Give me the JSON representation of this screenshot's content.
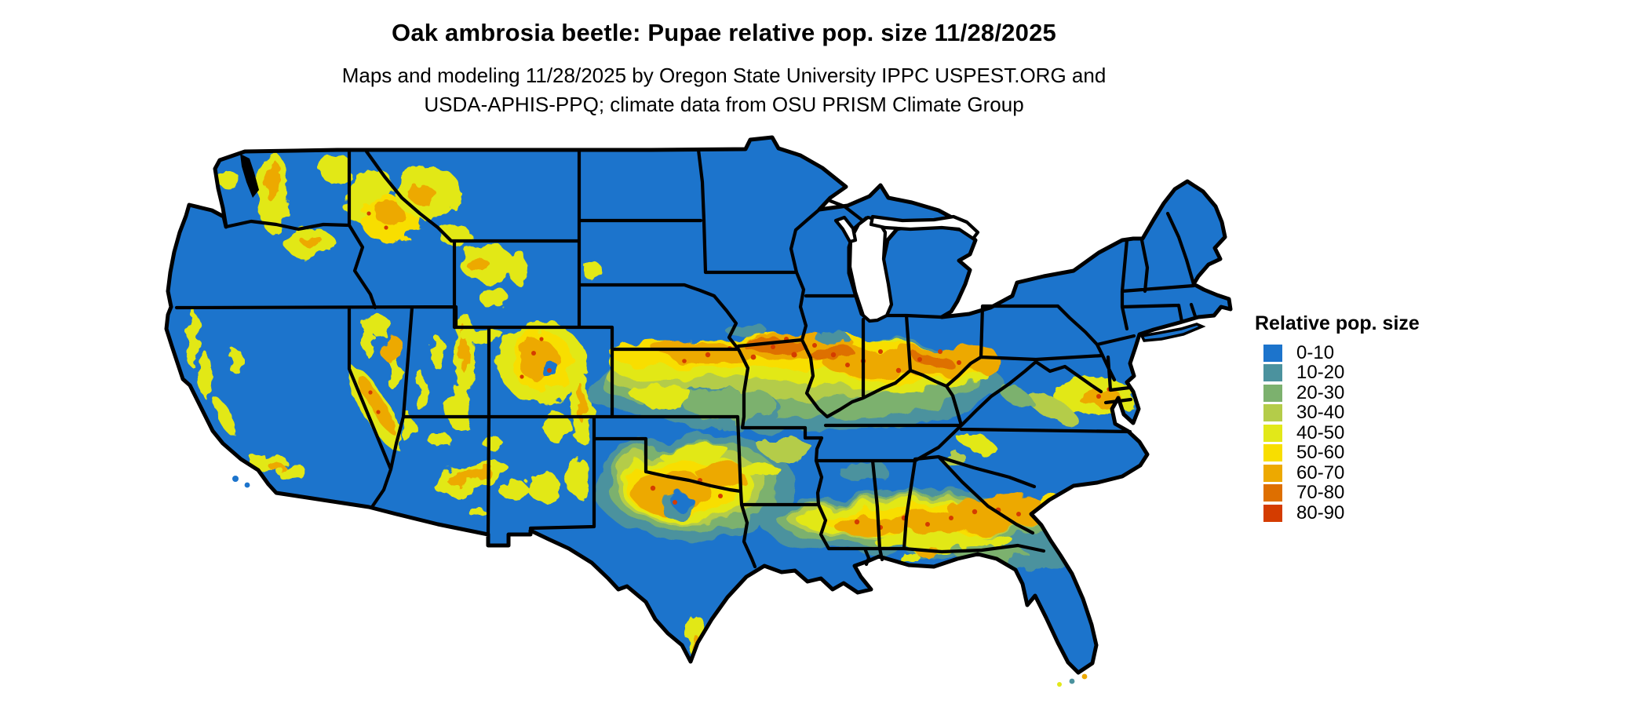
{
  "header": {
    "title": "Oak ambrosia beetle: Pupae relative pop. size 11/28/2025",
    "subtitle_line1": "Maps and modeling 11/28/2025 by Oregon State University IPPC USPEST.ORG and",
    "subtitle_line2": "USDA-APHIS-PPQ; climate data from OSU PRISM Climate Group"
  },
  "legend": {
    "title": "Relative pop. size",
    "items": [
      {
        "label": "0-10",
        "color": "#1c74cc"
      },
      {
        "label": "10-20",
        "color": "#4b929e"
      },
      {
        "label": "20-30",
        "color": "#7cb16e"
      },
      {
        "label": "30-40",
        "color": "#b4cc49"
      },
      {
        "label": "40-50",
        "color": "#e2e819"
      },
      {
        "label": "50-60",
        "color": "#f8de00"
      },
      {
        "label": "60-70",
        "color": "#eda900"
      },
      {
        "label": "70-80",
        "color": "#de6f00"
      },
      {
        "label": "80-90",
        "color": "#d43c00"
      }
    ]
  },
  "map": {
    "region": "Contiguous United States",
    "type": "raster choropleth of modeled relative population size",
    "base_value_class": "0-10",
    "border_color": "#000000",
    "water_color": "#ffffff",
    "high_value_regions": [
      "Cascades and northern Rockies (WA, ID, MT, WY)",
      "Sierra Nevada and Great Basin ranges (CA, NV)",
      "Colorado Rockies, Wasatch (UT), AZ/NM mountains",
      "Central band: southern Nebraska, Kansas, southern Iowa, northern Missouri, Illinois, Indiana, Ohio valley",
      "Central Texas",
      "Gulf band: Louisiana, Mississippi, Alabama, Georgia to coastal SC",
      "Southern Pennsylvania / Maryland / New Jersey area"
    ]
  }
}
